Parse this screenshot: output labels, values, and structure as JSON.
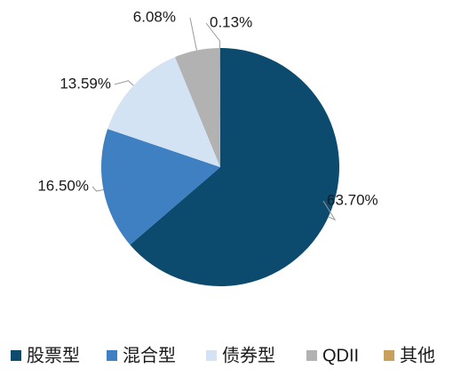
{
  "chart_data": {
    "type": "pie",
    "categories": [
      "股票型",
      "混合型",
      "债券型",
      "QDII",
      "其他"
    ],
    "values": [
      63.7,
      16.5,
      13.59,
      6.08,
      0.13
    ],
    "value_labels": [
      "63.70%",
      "16.50%",
      "13.59%",
      "6.08%",
      "0.13%"
    ],
    "colors": [
      "#0c4a6e",
      "#3f80c2",
      "#d3e3f4",
      "#b2b2b2",
      "#c8a05e"
    ],
    "legend": "bottom"
  }
}
